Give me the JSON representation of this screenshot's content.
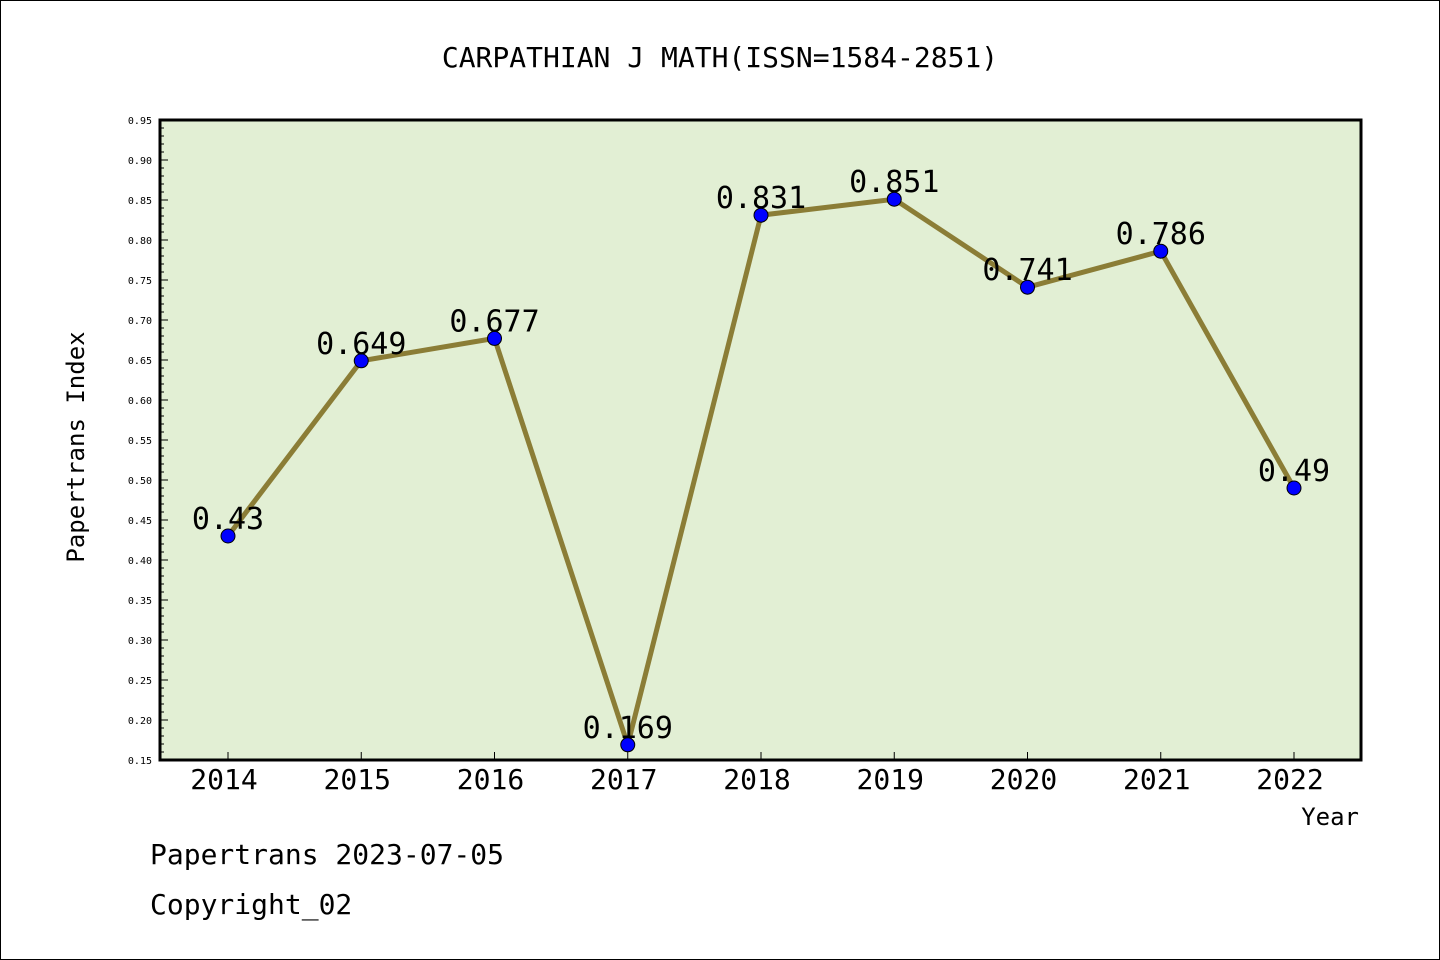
{
  "chart_data": {
    "type": "line",
    "title": "CARPATHIAN J MATH(ISSN=1584-2851)",
    "xlabel": "Year",
    "ylabel": "Papertrans Index",
    "categories": [
      "2014",
      "2015",
      "2016",
      "2017",
      "2018",
      "2019",
      "2020",
      "2021",
      "2022"
    ],
    "values": [
      0.43,
      0.649,
      0.677,
      0.169,
      0.831,
      0.851,
      0.741,
      0.786,
      0.49
    ],
    "data_labels": [
      "0.43",
      "0.649",
      "0.677",
      "0.169",
      "0.831",
      "0.851",
      "0.741",
      "0.786",
      "0.49"
    ],
    "ylim": [
      0.15,
      0.95
    ],
    "yticks": [
      "0.15",
      "0.20",
      "0.25",
      "0.30",
      "0.35",
      "0.40",
      "0.45",
      "0.50",
      "0.55",
      "0.60",
      "0.65",
      "0.70",
      "0.75",
      "0.80",
      "0.85",
      "0.90",
      "0.95"
    ],
    "grid": false,
    "colors": {
      "plot_background": "#e2efd4",
      "line": "#8b7d36",
      "marker": "#0000ff"
    }
  },
  "footer": {
    "line1": "Papertrans 2023-07-05",
    "line2": "Copyright_02"
  }
}
